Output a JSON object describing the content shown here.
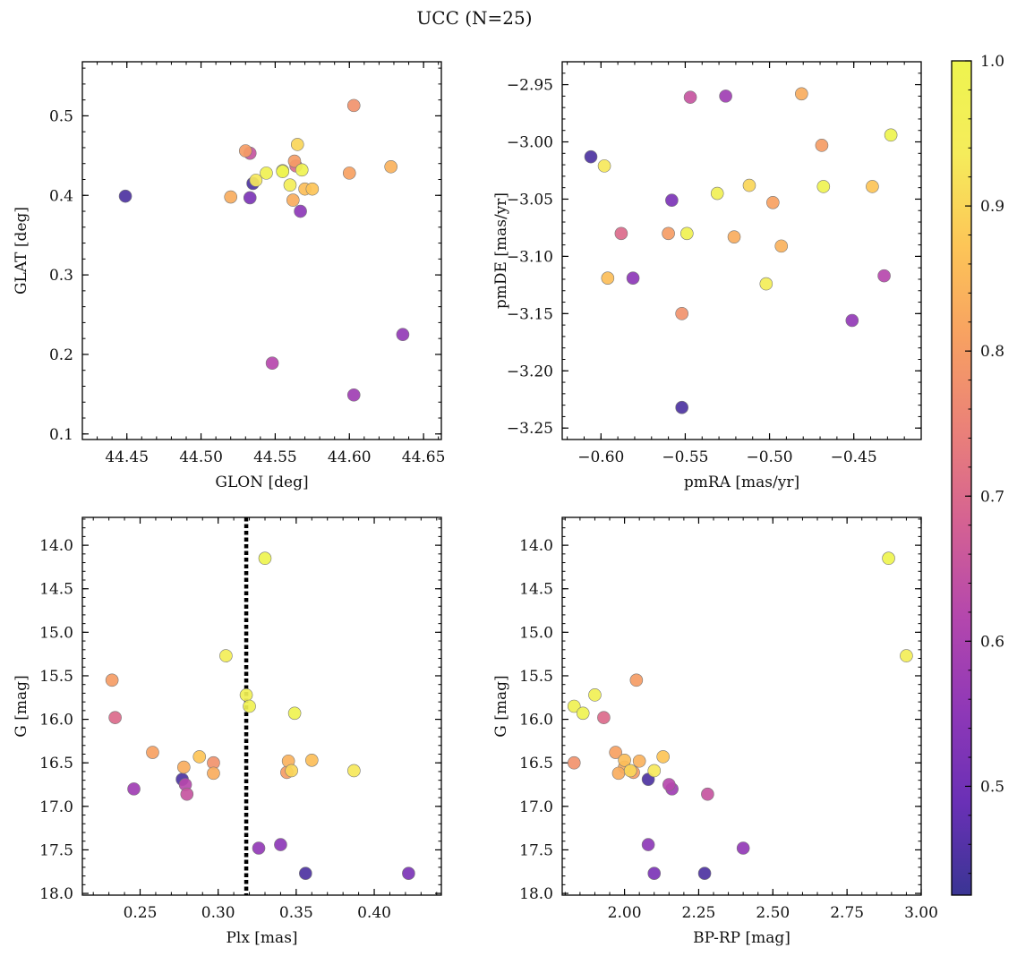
{
  "figure": {
    "title": "UCC (N=25)"
  },
  "colorbar": {
    "range": [
      0.425,
      1.0
    ],
    "ticks": [
      "0.5",
      "0.6",
      "0.7",
      "0.8",
      "0.9",
      "1.0"
    ],
    "cmap": "plasma (truncated)",
    "colors": [
      "#3a3594",
      "#6a30b6",
      "#8f38b7",
      "#b447ad",
      "#d46193",
      "#ea8079",
      "#f7a062",
      "#fdc557",
      "#f5ec5b",
      "#eef44f"
    ]
  },
  "stars": [
    {
      "glon": 44.449,
      "glat": 0.399,
      "pmra": -0.606,
      "pmde": -3.013,
      "plx": 0.277,
      "g": 16.69,
      "bprp": 2.08,
      "p": 0.45
    },
    {
      "glon": 44.535,
      "glat": 0.415,
      "pmra": -0.552,
      "pmde": -3.232,
      "plx": 0.356,
      "g": 17.77,
      "bprp": 2.27,
      "p": 0.45
    },
    {
      "glon": 44.533,
      "glat": 0.397,
      "pmra": -0.558,
      "pmde": -3.051,
      "plx": 0.422,
      "g": 17.77,
      "bprp": 2.1,
      "p": 0.52
    },
    {
      "glon": 44.567,
      "glat": 0.38,
      "pmra": -0.581,
      "pmde": -3.119,
      "plx": 0.34,
      "g": 17.44,
      "bprp": 2.08,
      "p": 0.55
    },
    {
      "glon": 44.636,
      "glat": 0.225,
      "pmra": -0.451,
      "pmde": -3.156,
      "plx": 0.326,
      "g": 17.48,
      "bprp": 2.4,
      "p": 0.56
    },
    {
      "glon": 44.603,
      "glat": 0.149,
      "pmra": -0.526,
      "pmde": -2.96,
      "plx": 0.246,
      "g": 16.8,
      "bprp": 2.16,
      "p": 0.58
    },
    {
      "glon": 44.548,
      "glat": 0.189,
      "pmra": -0.432,
      "pmde": -3.117,
      "plx": 0.279,
      "g": 16.75,
      "bprp": 2.15,
      "p": 0.62
    },
    {
      "glon": 44.533,
      "glat": 0.453,
      "pmra": -0.547,
      "pmde": -2.961,
      "plx": 0.28,
      "g": 16.86,
      "bprp": 2.28,
      "p": 0.65
    },
    {
      "glon": 44.564,
      "glat": 0.437,
      "pmra": -0.588,
      "pmde": -3.08,
      "plx": 0.234,
      "g": 15.98,
      "bprp": 1.93,
      "p": 0.7
    },
    {
      "glon": 44.603,
      "glat": 0.513,
      "pmra": -0.552,
      "pmde": -3.15,
      "plx": 0.297,
      "g": 16.5,
      "bprp": 1.83,
      "p": 0.78
    },
    {
      "glon": 44.563,
      "glat": 0.443,
      "pmra": -0.56,
      "pmde": -3.08,
      "plx": 0.344,
      "g": 16.61,
      "bprp": 2.03,
      "p": 0.8
    },
    {
      "glon": 44.53,
      "glat": 0.456,
      "pmra": -0.469,
      "pmde": -3.003,
      "plx": 0.232,
      "g": 15.55,
      "bprp": 2.04,
      "p": 0.8
    },
    {
      "glon": 44.6,
      "glat": 0.428,
      "pmra": -0.498,
      "pmde": -3.053,
      "plx": 0.258,
      "g": 16.38,
      "bprp": 1.97,
      "p": 0.81
    },
    {
      "glon": 44.562,
      "glat": 0.394,
      "pmra": -0.521,
      "pmde": -3.083,
      "plx": 0.278,
      "g": 16.55,
      "bprp": 2.0,
      "p": 0.83
    },
    {
      "glon": 44.52,
      "glat": 0.398,
      "pmra": -0.481,
      "pmde": -2.958,
      "plx": 0.297,
      "g": 16.62,
      "bprp": 1.98,
      "p": 0.83
    },
    {
      "glon": 44.628,
      "glat": 0.436,
      "pmra": -0.493,
      "pmde": -3.091,
      "plx": 0.345,
      "g": 16.48,
      "bprp": 2.05,
      "p": 0.84
    },
    {
      "glon": 44.57,
      "glat": 0.408,
      "pmra": -0.596,
      "pmde": -3.119,
      "plx": 0.36,
      "g": 16.47,
      "bprp": 2.0,
      "p": 0.86
    },
    {
      "glon": 44.575,
      "glat": 0.408,
      "pmra": -0.439,
      "pmde": -3.039,
      "plx": 0.288,
      "g": 16.43,
      "bprp": 2.13,
      "p": 0.87
    },
    {
      "glon": 44.565,
      "glat": 0.464,
      "pmra": -0.512,
      "pmde": -3.038,
      "plx": 0.347,
      "g": 16.59,
      "bprp": 2.02,
      "p": 0.9
    },
    {
      "glon": 44.537,
      "glat": 0.419,
      "pmra": -0.598,
      "pmde": -3.021,
      "plx": 0.387,
      "g": 16.59,
      "bprp": 2.1,
      "p": 0.93
    },
    {
      "glon": 44.56,
      "glat": 0.413,
      "pmra": -0.502,
      "pmde": -3.124,
      "plx": 0.305,
      "g": 15.27,
      "bprp": 2.95,
      "p": 0.95
    },
    {
      "glon": 44.555,
      "glat": 0.431,
      "pmra": -0.531,
      "pmde": -3.045,
      "plx": 0.318,
      "g": 15.72,
      "bprp": 1.9,
      "p": 0.97
    },
    {
      "glon": 44.544,
      "glat": 0.428,
      "pmra": -0.549,
      "pmde": -3.08,
      "plx": 0.32,
      "g": 15.85,
      "bprp": 1.83,
      "p": 0.98
    },
    {
      "glon": 44.568,
      "glat": 0.432,
      "pmra": -0.468,
      "pmde": -3.039,
      "plx": 0.349,
      "g": 15.93,
      "bprp": 1.86,
      "p": 0.99
    },
    {
      "glon": 44.555,
      "glat": 0.43,
      "pmra": -0.428,
      "pmde": -2.994,
      "plx": 0.33,
      "g": 14.15,
      "bprp": 2.89,
      "p": 1.0
    }
  ],
  "chart_data": [
    {
      "type": "scatter",
      "xlabel": "GLON [deg]",
      "ylabel": "GLAT [deg]",
      "x_field": "glon",
      "y_field": "glat",
      "xlim": [
        44.42,
        44.662
      ],
      "ylim": [
        0.093,
        0.568
      ],
      "xticks": [
        44.45,
        44.5,
        44.55,
        44.6,
        44.65
      ],
      "xtick_labels": [
        "44.45",
        "44.50",
        "44.55",
        "44.60",
        "44.65"
      ],
      "yticks": [
        0.1,
        0.2,
        0.3,
        0.4,
        0.5
      ],
      "ytick_labels": [
        "0.1",
        "0.2",
        "0.3",
        "0.4",
        "0.5"
      ],
      "x_minor": 0.01,
      "y_minor": 0.02
    },
    {
      "type": "scatter",
      "xlabel": "pmRA [mas/yr]",
      "ylabel": "pmDE [mas/yr]",
      "x_field": "pmra",
      "y_field": "pmde",
      "xlim": [
        -0.623,
        -0.41
      ],
      "ylim": [
        -3.26,
        -2.93
      ],
      "xticks": [
        -0.6,
        -0.55,
        -0.5,
        -0.45
      ],
      "xtick_labels": [
        "−0.60",
        "−0.55",
        "−0.50",
        "−0.45"
      ],
      "yticks": [
        -3.25,
        -3.2,
        -3.15,
        -3.1,
        -3.05,
        -3.0,
        -2.95
      ],
      "ytick_labels": [
        "−3.25",
        "−3.20",
        "−3.15",
        "−3.10",
        "−3.05",
        "−3.00",
        "−2.95"
      ],
      "x_minor": 0.01,
      "y_minor": 0.01
    },
    {
      "type": "scatter",
      "xlabel": "Plx [mas]",
      "ylabel": "G [mag]",
      "x_field": "plx",
      "y_field": "g",
      "xlim": [
        0.213,
        0.443
      ],
      "ylim": [
        18.02,
        13.68
      ],
      "y_inverted": true,
      "xticks": [
        0.25,
        0.3,
        0.35,
        0.4
      ],
      "xtick_labels": [
        "0.25",
        "0.30",
        "0.35",
        "0.40"
      ],
      "yticks": [
        14.0,
        14.5,
        15.0,
        15.5,
        16.0,
        16.5,
        17.0,
        17.5,
        18.0
      ],
      "ytick_labels": [
        "14.0",
        "14.5",
        "15.0",
        "15.5",
        "16.0",
        "16.5",
        "17.0",
        "17.5",
        "18.0"
      ],
      "x_minor": 0.01,
      "y_minor": 0.1,
      "vline": {
        "x": 0.318,
        "style": "dotted"
      }
    },
    {
      "type": "scatter",
      "xlabel": "BP-RP [mag]",
      "ylabel": "G [mag]",
      "x_field": "bprp",
      "y_field": "g",
      "xlim": [
        1.79,
        3.0
      ],
      "ylim": [
        18.02,
        13.68
      ],
      "y_inverted": true,
      "xticks": [
        2.0,
        2.25,
        2.5,
        2.75,
        3.0
      ],
      "xtick_labels": [
        "2.00",
        "2.25",
        "2.50",
        "2.75",
        "3.00"
      ],
      "yticks": [
        14.0,
        14.5,
        15.0,
        15.5,
        16.0,
        16.5,
        17.0,
        17.5,
        18.0
      ],
      "ytick_labels": [
        "14.0",
        "14.5",
        "15.0",
        "15.5",
        "16.0",
        "16.5",
        "17.0",
        "17.5",
        "18.0"
      ],
      "x_minor": 0.05,
      "y_minor": 0.1
    }
  ]
}
